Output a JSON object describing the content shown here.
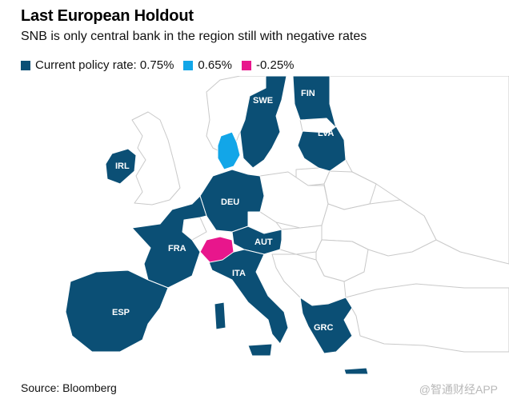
{
  "header": {
    "title": "Last European Holdout",
    "subtitle": "SNB is only central bank in the region still with negative rates"
  },
  "legend": [
    {
      "label": "Current policy rate: 0.75%",
      "color": "#0b4f75"
    },
    {
      "label": "0.65%",
      "color": "#12a6e8"
    },
    {
      "label": "-0.25%",
      "color": "#e8168c"
    }
  ],
  "map": {
    "colors": {
      "rate_075": "#0b4f75",
      "rate_065": "#12a6e8",
      "rate_neg025": "#e8168c",
      "other": "#ffffff",
      "border": "#c9c9c9"
    },
    "countries": [
      {
        "code": "SWE",
        "rate": "0.75%"
      },
      {
        "code": "FIN",
        "rate": "0.75%"
      },
      {
        "code": "LVA",
        "rate": "0.75%"
      },
      {
        "code": "IRL",
        "rate": "0.75%"
      },
      {
        "code": "DEU",
        "rate": "0.75%"
      },
      {
        "code": "FRA",
        "rate": "0.75%"
      },
      {
        "code": "AUT",
        "rate": "0.75%"
      },
      {
        "code": "ITA",
        "rate": "0.75%"
      },
      {
        "code": "ESP",
        "rate": "0.75%"
      },
      {
        "code": "GRC",
        "rate": "0.75%"
      }
    ]
  },
  "footer": {
    "source": "Source: Bloomberg",
    "watermark": "@智通财经APP"
  }
}
